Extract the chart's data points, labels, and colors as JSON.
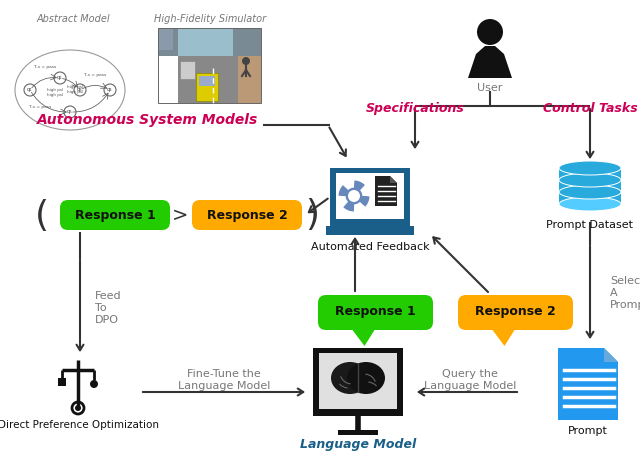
{
  "bg_color": "#ffffff",
  "title_color": "#cc0055",
  "blue_color": "#1a5f8a",
  "cyan_color": "#29aadc",
  "cyan_light": "#55ccff",
  "green_color": "#22cc00",
  "orange_color": "#ffaa00",
  "dark_color": "#111111",
  "gray_color": "#777777",
  "arrow_color": "#444444",
  "texts": {
    "abstract_model": "Abstract Model",
    "hifi_sim": "High-Fidelity Simulator",
    "auto_sys": "Autonomous System Models",
    "user": "User",
    "specifications": "Specifications",
    "control_tasks": "Control Tasks",
    "automated_feedback": "Automated Feedback",
    "prompt_dataset": "Prompt Dataset",
    "response1": "Response 1",
    "response2": "Response 2",
    "feed_to_dpo": "Feed\nTo\nDPO",
    "fine_tune": "Fine-Tune the\nLanguage Model",
    "query_lm": "Query the\nLanguage Model",
    "direct_pref_opt": "Direct Preference Optimization",
    "language_model": "Language Model",
    "select_a_prompt": "Select\nA\nPrompt",
    "prompt": "Prompt"
  }
}
